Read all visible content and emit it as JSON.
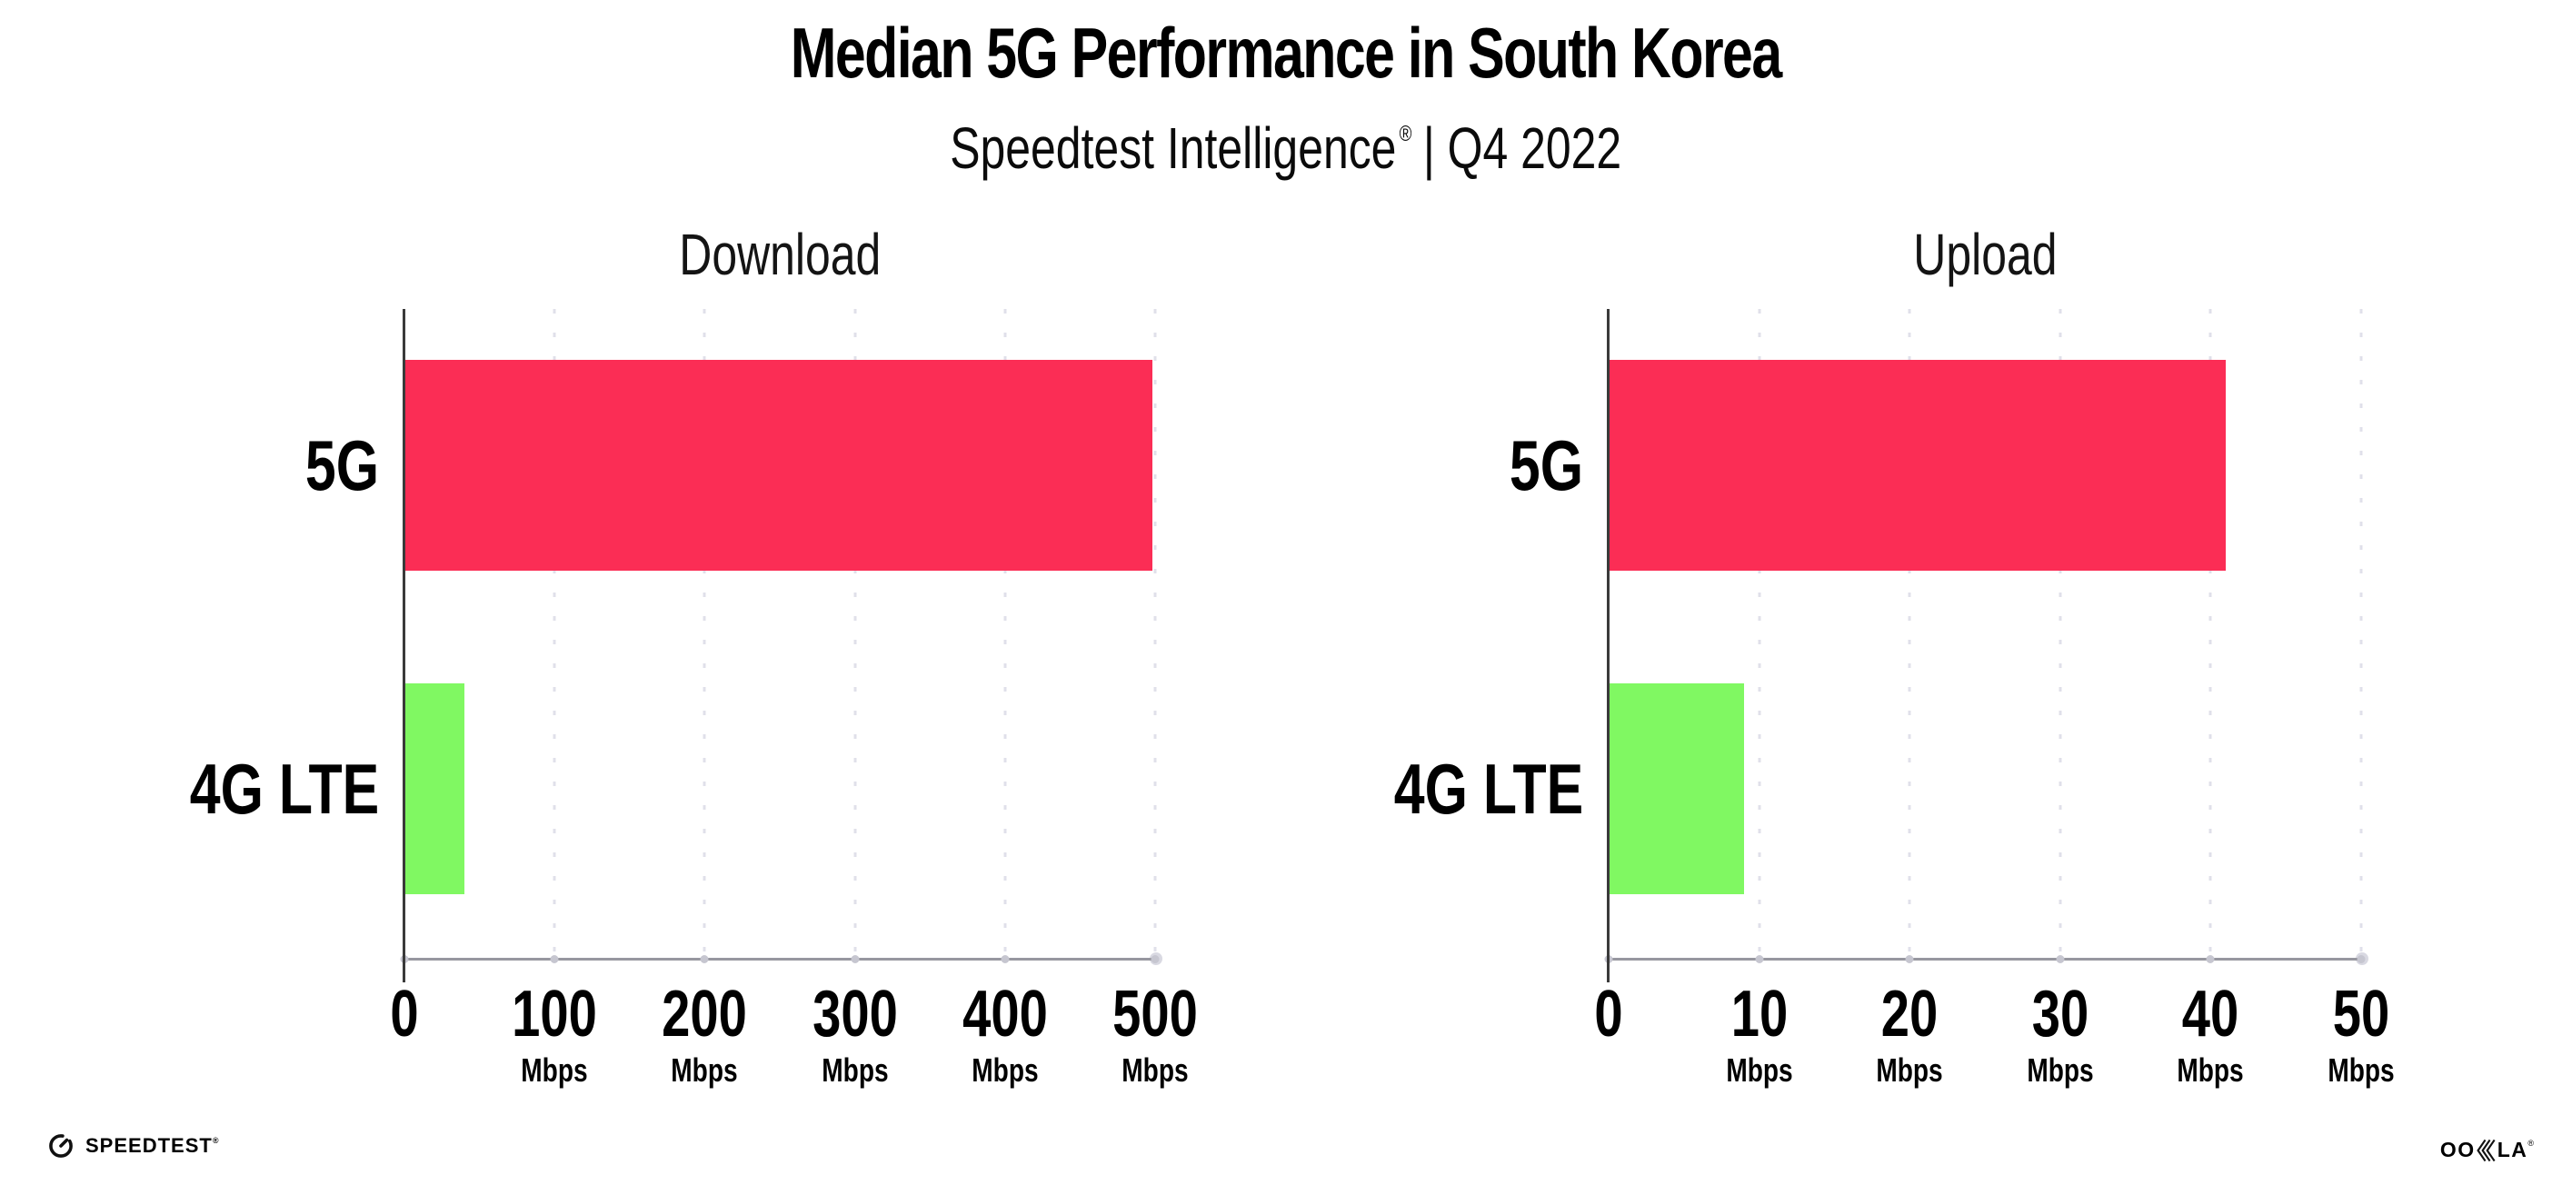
{
  "title": "Median 5G Performance in South Korea",
  "subtitle": {
    "brand": "Speedtest Intelligence",
    "reg": "®",
    "rest": "| Q4 2022"
  },
  "charts": [
    {
      "title": "Download",
      "bars": [
        {
          "label": "5G",
          "value": 498
        },
        {
          "label": "4G LTE",
          "value": 40
        }
      ],
      "ticks": [
        {
          "label": "0",
          "unit": ""
        },
        {
          "label": "100",
          "unit": "Mbps"
        },
        {
          "label": "200",
          "unit": "Mbps"
        },
        {
          "label": "300",
          "unit": "Mbps"
        },
        {
          "label": "400",
          "unit": "Mbps"
        },
        {
          "label": "500",
          "unit": "Mbps"
        }
      ]
    },
    {
      "title": "Upload",
      "bars": [
        {
          "label": "5G",
          "value": 41
        },
        {
          "label": "4G LTE",
          "value": 9
        }
      ],
      "ticks": [
        {
          "label": "0",
          "unit": ""
        },
        {
          "label": "10",
          "unit": "Mbps"
        },
        {
          "label": "20",
          "unit": "Mbps"
        },
        {
          "label": "30",
          "unit": "Mbps"
        },
        {
          "label": "40",
          "unit": "Mbps"
        },
        {
          "label": "50",
          "unit": "Mbps"
        }
      ]
    }
  ],
  "footer": {
    "speedtest": "SPEEDTEST",
    "speedtest_reg": "®",
    "ookla_left": "OO",
    "ookla_right": "LA",
    "ookla_reg": "®"
  },
  "colors": {
    "bar_5g": "#FB2D55",
    "bar_4g": "#80F862",
    "grid_dot": "#E0E0EA",
    "axis": "#97979F",
    "spine": "#3A3A3A"
  },
  "chart_data": [
    {
      "type": "bar",
      "orientation": "horizontal",
      "title": "Download",
      "categories": [
        "5G",
        "4G LTE"
      ],
      "values": [
        498,
        40
      ],
      "unit": "Mbps",
      "xlim": [
        0,
        500
      ],
      "xticks": [
        0,
        100,
        200,
        300,
        400,
        500
      ],
      "colors": [
        "#FB2D55",
        "#80F862"
      ],
      "legend": false,
      "grid": "vertical-dotted"
    },
    {
      "type": "bar",
      "orientation": "horizontal",
      "title": "Upload",
      "categories": [
        "5G",
        "4G LTE"
      ],
      "values": [
        41,
        9
      ],
      "unit": "Mbps",
      "xlim": [
        0,
        50
      ],
      "xticks": [
        0,
        10,
        20,
        30,
        40,
        50
      ],
      "colors": [
        "#FB2D55",
        "#80F862"
      ],
      "legend": false,
      "grid": "vertical-dotted"
    }
  ]
}
